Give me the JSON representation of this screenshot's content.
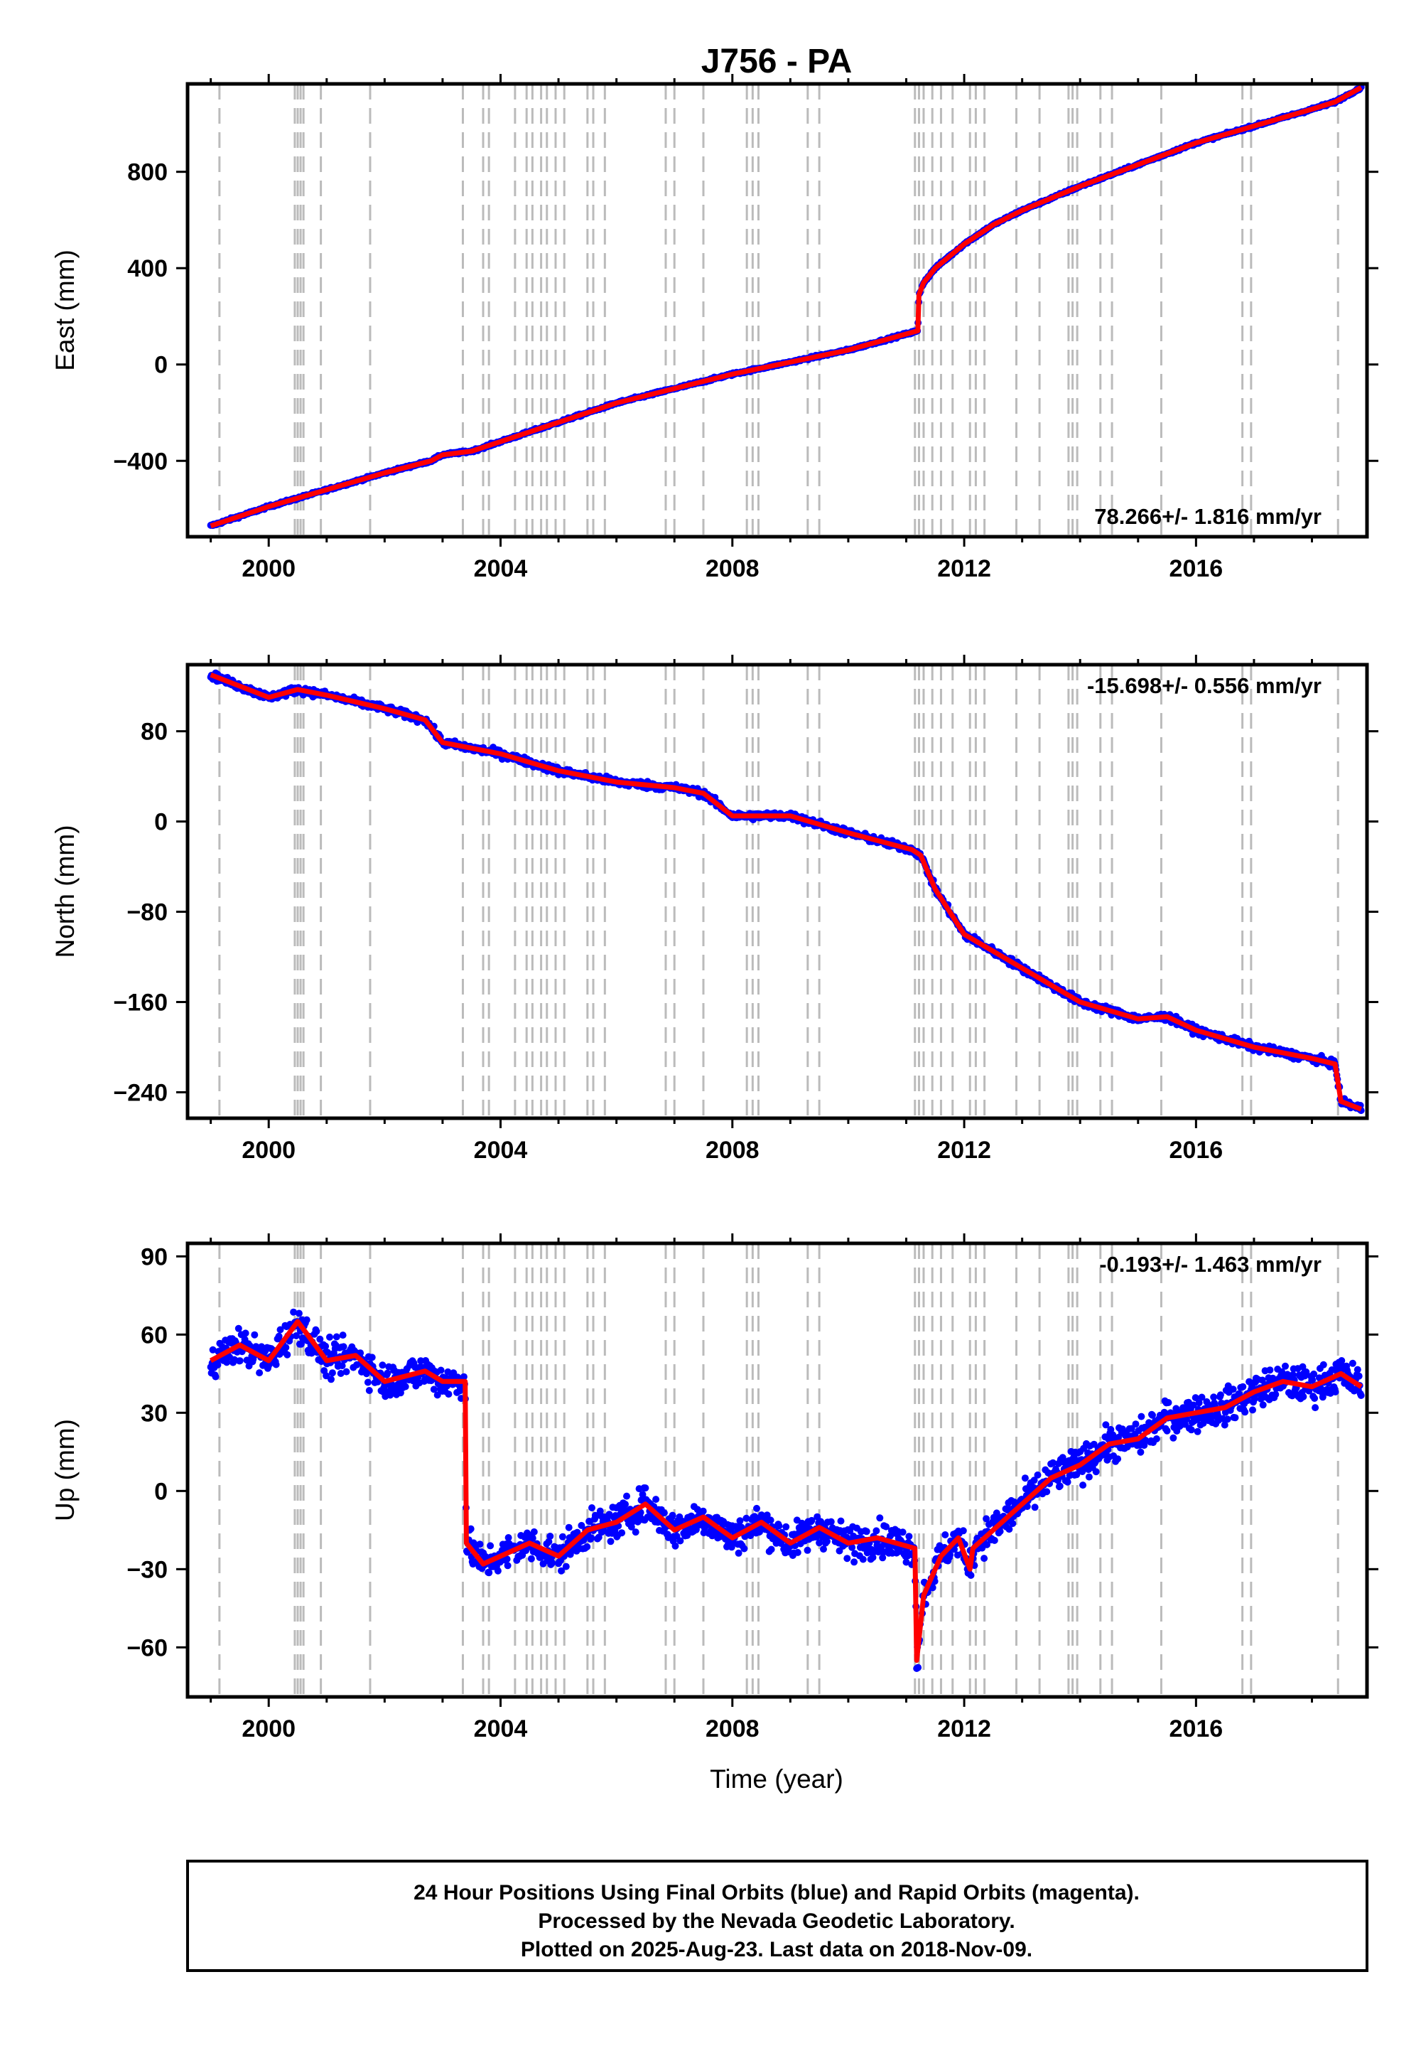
{
  "chart_data": {
    "title": "J756 - PA",
    "x_range": [
      1998.6,
      2018.95
    ],
    "x_ticks": [
      2000,
      2004,
      2008,
      2012,
      2016
    ],
    "event_lines": [
      1999.15,
      2000.45,
      2000.5,
      2000.55,
      2000.6,
      2000.9,
      2001.75,
      2003.35,
      2003.7,
      2003.8,
      2004.25,
      2004.45,
      2004.55,
      2004.7,
      2004.8,
      2004.95,
      2005.1,
      2005.5,
      2005.6,
      2005.8,
      2006.85,
      2007.0,
      2007.5,
      2008.25,
      2008.35,
      2008.45,
      2009.3,
      2009.5,
      2011.15,
      2011.22,
      2011.3,
      2011.45,
      2011.6,
      2011.8,
      2012.1,
      2012.2,
      2012.35,
      2012.9,
      2013.3,
      2013.8,
      2013.87,
      2013.95,
      2014.35,
      2014.55,
      2015.4,
      2016.8,
      2016.95,
      2018.45
    ],
    "subplots": [
      {
        "type": "scatter",
        "ylabel": "East (mm)",
        "ylim": [
          -715,
          1165
        ],
        "y_ticks": [
          -400,
          0,
          400,
          800
        ],
        "rate_text": "78.266+/- 1.816 mm/yr",
        "rate_position": "bottom-right",
        "series": [
          {
            "name": "Final Orbits",
            "color": "#0000ff",
            "x": [
              1999.0,
              2000.0,
              2001.0,
              2002.0,
              2002.8,
              2003.0,
              2003.5,
              2004.0,
              2006.0,
              2008.0,
              2010.0,
              2011.2,
              2011.22,
              2011.3,
              2011.5,
              2012.0,
              2012.5,
              2013.0,
              2013.5,
              2014.0,
              2015.0,
              2016.0,
              2017.0,
              2018.0,
              2018.4,
              2018.85
            ],
            "y": [
              -670,
              -590,
              -520,
              -450,
              -400,
              -375,
              -360,
              -320,
              -160,
              -40,
              60,
              140,
              290,
              340,
              400,
              500,
              580,
              640,
              690,
              740,
              830,
              920,
              990,
              1060,
              1090,
              1150
            ]
          },
          {
            "name": "Trend",
            "color": "#ff0000",
            "x": [
              1999.0,
              2000.0,
              2001.0,
              2002.0,
              2002.8,
              2003.0,
              2003.5,
              2004.0,
              2006.0,
              2008.0,
              2010.0,
              2011.2,
              2011.22,
              2011.3,
              2011.5,
              2012.0,
              2012.5,
              2013.0,
              2013.5,
              2014.0,
              2015.0,
              2016.0,
              2017.0,
              2018.0,
              2018.4,
              2018.85
            ],
            "y": [
              -670,
              -590,
              -520,
              -450,
              -400,
              -375,
              -360,
              -320,
              -160,
              -40,
              60,
              140,
              290,
              340,
              400,
              500,
              580,
              640,
              690,
              740,
              830,
              920,
              990,
              1060,
              1090,
              1150
            ]
          }
        ]
      },
      {
        "type": "scatter",
        "ylabel": "North (mm)",
        "ylim": [
          -263,
          139
        ],
        "y_ticks": [
          -240,
          -160,
          -80,
          0,
          80
        ],
        "rate_text": "-15.698+/- 0.556 mm/yr",
        "rate_position": "top-right",
        "series": [
          {
            "name": "Final Orbits",
            "color": "#0000ff",
            "x": [
              1999.0,
              2000.0,
              2000.5,
              2001.0,
              2002.0,
              2002.7,
              2003.0,
              2004.0,
              2005.0,
              2006.0,
              2007.0,
              2007.5,
              2008.0,
              2009.0,
              2010.0,
              2011.1,
              2011.25,
              2011.5,
              2012.0,
              2012.5,
              2013.0,
              2013.5,
              2014.0,
              2015.0,
              2015.5,
              2016.0,
              2017.0,
              2018.0,
              2018.4,
              2018.5,
              2018.85
            ],
            "y": [
              130,
              110,
              117,
              112,
              100,
              90,
              70,
              60,
              45,
              35,
              30,
              25,
              5,
              5,
              -10,
              -25,
              -30,
              -60,
              -100,
              -115,
              -130,
              -145,
              -160,
              -175,
              -173,
              -185,
              -200,
              -210,
              -215,
              -248,
              -255
            ]
          },
          {
            "name": "Trend",
            "color": "#ff0000",
            "x": [
              1999.0,
              2000.0,
              2000.5,
              2001.0,
              2002.0,
              2002.7,
              2003.0,
              2004.0,
              2005.0,
              2006.0,
              2007.0,
              2007.5,
              2008.0,
              2009.0,
              2010.0,
              2011.1,
              2011.25,
              2011.5,
              2012.0,
              2012.5,
              2013.0,
              2013.5,
              2014.0,
              2015.0,
              2015.5,
              2016.0,
              2017.0,
              2018.0,
              2018.4,
              2018.5,
              2018.85
            ],
            "y": [
              130,
              110,
              117,
              112,
              100,
              90,
              70,
              60,
              45,
              35,
              30,
              25,
              5,
              5,
              -10,
              -25,
              -30,
              -60,
              -100,
              -115,
              -130,
              -145,
              -160,
              -175,
              -173,
              -185,
              -200,
              -210,
              -215,
              -248,
              -255
            ]
          }
        ]
      },
      {
        "type": "scatter",
        "ylabel": "Up (mm)",
        "ylim": [
          -79,
          95
        ],
        "y_ticks": [
          -60,
          -30,
          0,
          30,
          60,
          90
        ],
        "rate_text": "-0.193+/- 1.463 mm/yr",
        "rate_position": "top-right",
        "series": [
          {
            "name": "Final Orbits",
            "color": "#0000ff",
            "x": [
              1999.0,
              1999.5,
              2000.0,
              2000.5,
              2001.0,
              2001.5,
              2002.0,
              2002.7,
              2003.0,
              2003.39,
              2003.41,
              2003.7,
              2004.0,
              2004.5,
              2005.0,
              2005.5,
              2006.0,
              2006.5,
              2007.0,
              2007.5,
              2008.0,
              2008.5,
              2009.0,
              2009.5,
              2010.0,
              2010.5,
              2011.15,
              2011.18,
              2011.3,
              2011.6,
              2011.9,
              2012.1,
              2012.15,
              2012.5,
              2013.0,
              2013.5,
              2014.0,
              2014.5,
              2015.0,
              2015.5,
              2016.0,
              2016.5,
              2017.0,
              2017.5,
              2018.0,
              2018.5,
              2018.85
            ],
            "y": [
              50,
              56,
              50,
              65,
              50,
              52,
              42,
              46,
              42,
              42,
              -20,
              -28,
              -25,
              -20,
              -25,
              -15,
              -12,
              -5,
              -15,
              -10,
              -18,
              -12,
              -20,
              -14,
              -20,
              -18,
              -22,
              -65,
              -40,
              -25,
              -18,
              -30,
              -22,
              -15,
              -5,
              5,
              10,
              18,
              20,
              28,
              30,
              32,
              38,
              42,
              40,
              45,
              40
            ]
          },
          {
            "name": "Trend",
            "color": "#ff0000",
            "x": [
              1999.0,
              1999.5,
              2000.0,
              2000.5,
              2001.0,
              2001.5,
              2002.0,
              2002.7,
              2003.0,
              2003.39,
              2003.41,
              2003.7,
              2004.0,
              2004.5,
              2005.0,
              2005.5,
              2006.0,
              2006.5,
              2007.0,
              2007.5,
              2008.0,
              2008.5,
              2009.0,
              2009.5,
              2010.0,
              2010.5,
              2011.15,
              2011.18,
              2011.3,
              2011.6,
              2011.9,
              2012.1,
              2012.15,
              2012.5,
              2013.0,
              2013.5,
              2014.0,
              2014.5,
              2015.0,
              2015.5,
              2016.0,
              2016.5,
              2017.0,
              2017.5,
              2018.0,
              2018.5,
              2018.85
            ],
            "y": [
              50,
              56,
              50,
              65,
              50,
              52,
              42,
              46,
              42,
              42,
              -20,
              -28,
              -25,
              -20,
              -25,
              -15,
              -12,
              -5,
              -15,
              -10,
              -18,
              -12,
              -20,
              -14,
              -20,
              -18,
              -22,
              -65,
              -40,
              -25,
              -18,
              -30,
              -22,
              -15,
              -5,
              5,
              10,
              18,
              20,
              28,
              30,
              32,
              38,
              42,
              40,
              45,
              40
            ]
          }
        ]
      }
    ],
    "xlabel": "Time (year)"
  },
  "footer": {
    "line1": "24 Hour Positions Using Final Orbits (blue) and Rapid Orbits (magenta).",
    "line2": "Processed by the Nevada Geodetic Laboratory.",
    "line3": "Plotted on 2025-Aug-23. Last data on 2018-Nov-09."
  },
  "colors": {
    "points": "#0000ff",
    "trend": "#ff0000",
    "events": "#bbbbbb",
    "frame": "#000000"
  }
}
